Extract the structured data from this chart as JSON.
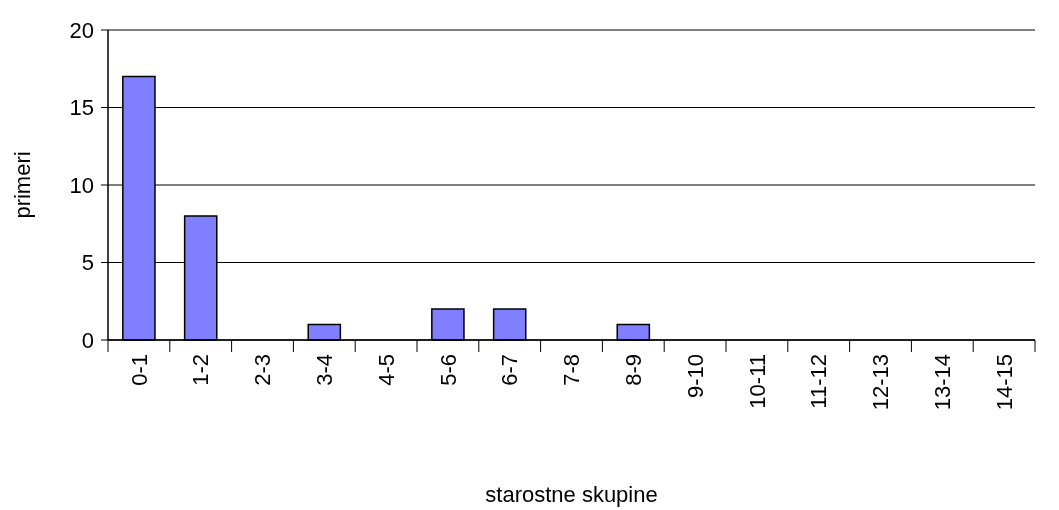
{
  "chart_data": {
    "type": "bar",
    "xlabel": "starostne skupine",
    "ylabel": "primeri",
    "categories": [
      "0-1",
      "1-2",
      "2-3",
      "3-4",
      "4-5",
      "5-6",
      "6-7",
      "7-8",
      "8-9",
      "9-10",
      "10-11",
      "11-12",
      "12-13",
      "13-14",
      "14-15"
    ],
    "values": [
      17,
      8,
      0,
      1,
      0,
      2,
      2,
      0,
      1,
      0,
      0,
      0,
      0,
      0,
      0
    ],
    "color": "#8080ff",
    "ylim": [
      0,
      20
    ],
    "yticks": [
      0,
      5,
      10,
      15,
      20
    ],
    "grid": "y"
  }
}
